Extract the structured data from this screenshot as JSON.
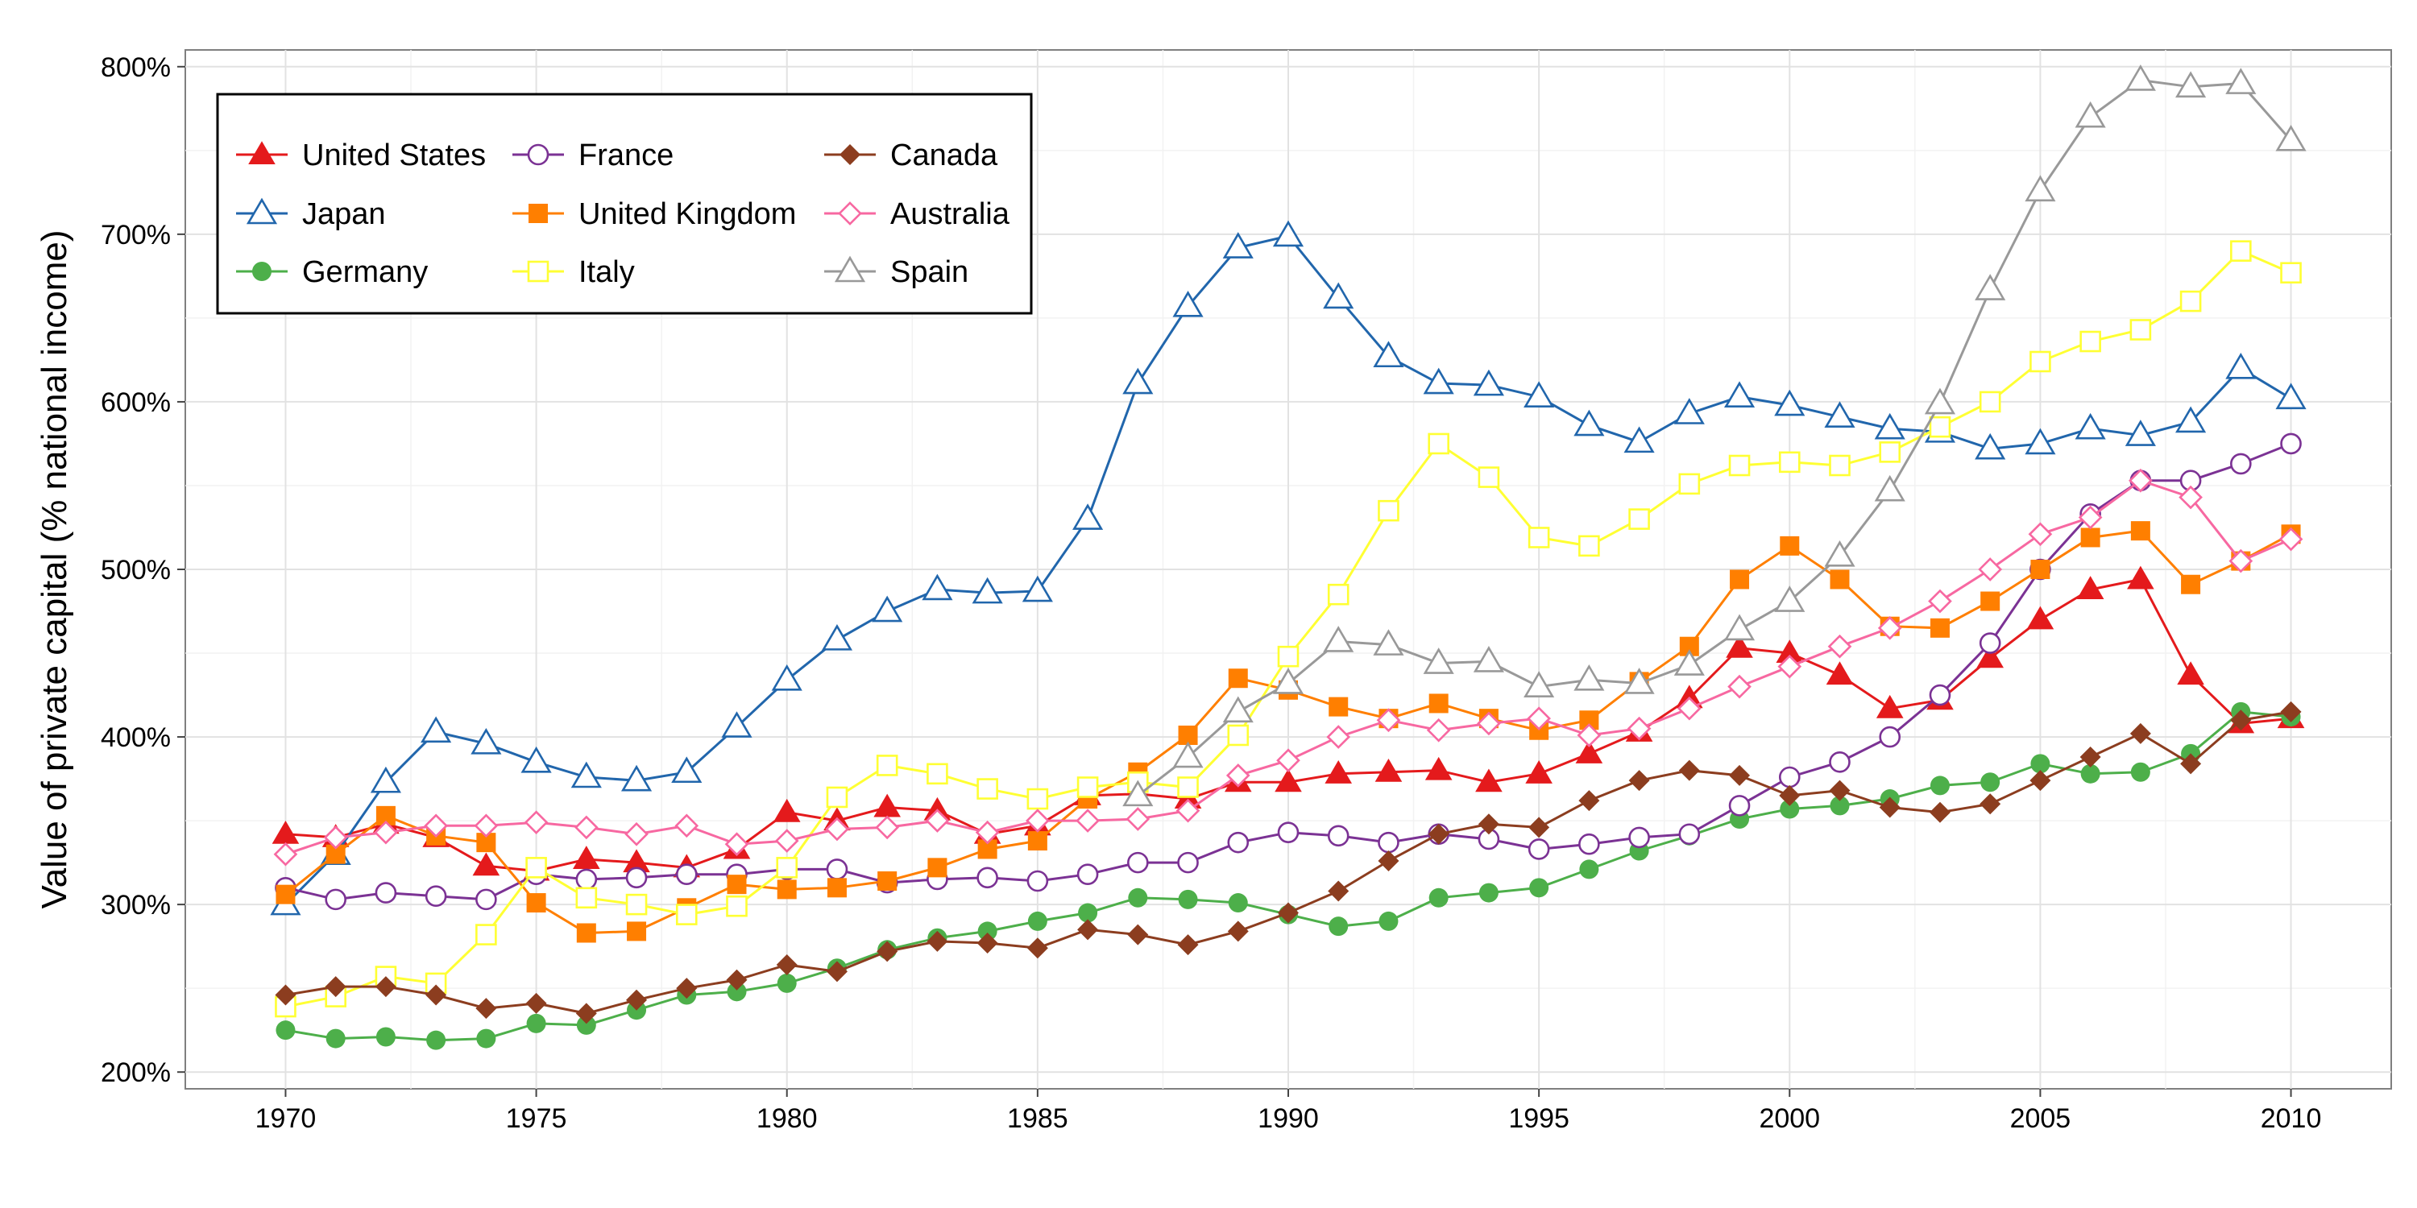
{
  "chart_data": {
    "type": "line",
    "title": "",
    "xlabel": "",
    "ylabel": "Value of private capital (% national income)",
    "xlim": [
      1968.0,
      2012.0
    ],
    "ylim": [
      190,
      810
    ],
    "x_ticks": [
      1970,
      1975,
      1980,
      1985,
      1990,
      1995,
      2000,
      2005,
      2010
    ],
    "y_ticks": [
      200,
      300,
      400,
      500,
      600,
      700,
      800
    ],
    "y_tick_suffix": "%",
    "grid": true,
    "legend_position": "top-left",
    "x": [
      1970,
      1971,
      1972,
      1973,
      1974,
      1975,
      1976,
      1977,
      1978,
      1979,
      1980,
      1981,
      1982,
      1983,
      1984,
      1985,
      1986,
      1987,
      1988,
      1989,
      1990,
      1991,
      1992,
      1993,
      1994,
      1995,
      1996,
      1997,
      1998,
      1999,
      2000,
      2001,
      2002,
      2003,
      2004,
      2005,
      2006,
      2007,
      2008,
      2009,
      2010
    ],
    "series": [
      {
        "name": "United States",
        "color": "#E41A1C",
        "marker": "triangle-filled",
        "values": [
          342,
          340,
          348,
          340,
          323,
          320,
          327,
          325,
          322,
          333,
          355,
          350,
          358,
          356,
          342,
          347,
          365,
          366,
          363,
          373,
          373,
          378,
          379,
          380,
          373,
          378,
          390,
          403,
          423,
          453,
          450,
          437,
          417,
          422,
          447,
          470,
          488,
          494,
          437,
          408,
          411
        ]
      },
      {
        "name": "Japan",
        "color": "#2166AC",
        "marker": "triangle-open",
        "values": [
          300,
          330,
          373,
          403,
          396,
          385,
          376,
          374,
          379,
          406,
          434,
          458,
          475,
          488,
          486,
          487,
          530,
          611,
          657,
          692,
          699,
          662,
          627,
          611,
          610,
          603,
          586,
          576,
          593,
          603,
          598,
          591,
          584,
          582,
          572,
          575,
          584,
          580,
          588,
          620,
          602
        ]
      },
      {
        "name": "Germany",
        "color": "#4DAF4A",
        "marker": "circle-filled",
        "values": [
          225,
          220,
          221,
          219,
          220,
          229,
          228,
          237,
          246,
          248,
          253,
          262,
          273,
          280,
          284,
          290,
          295,
          304,
          303,
          301,
          294,
          287,
          290,
          304,
          307,
          310,
          321,
          332,
          341,
          351,
          357,
          359,
          363,
          371,
          373,
          384,
          378,
          379,
          390,
          415,
          412
        ]
      },
      {
        "name": "France",
        "color": "#7B3294",
        "marker": "circle-open",
        "values": [
          310,
          303,
          307,
          305,
          303,
          318,
          315,
          316,
          318,
          318,
          321,
          321,
          313,
          315,
          316,
          314,
          318,
          325,
          325,
          337,
          343,
          341,
          337,
          342,
          339,
          333,
          336,
          340,
          342,
          359,
          376,
          385,
          400,
          425,
          456,
          500,
          533,
          553,
          553,
          563,
          575
        ]
      },
      {
        "name": "United Kingdom",
        "color": "#FF7F00",
        "marker": "square-filled",
        "values": [
          306,
          330,
          353,
          341,
          337,
          301,
          283,
          284,
          298,
          312,
          309,
          310,
          314,
          322,
          333,
          338,
          363,
          379,
          401,
          435,
          428,
          418,
          411,
          420,
          411,
          404,
          410,
          433,
          454,
          494,
          514,
          494,
          466,
          465,
          481,
          500,
          519,
          523,
          491,
          505,
          521
        ]
      },
      {
        "name": "Italy",
        "color": "#FFFF33",
        "marker": "square-open",
        "values": [
          239,
          245,
          257,
          253,
          282,
          322,
          304,
          300,
          294,
          299,
          322,
          364,
          383,
          378,
          369,
          363,
          370,
          373,
          370,
          401,
          448,
          485,
          535,
          575,
          555,
          519,
          514,
          530,
          551,
          562,
          564,
          562,
          570,
          585,
          600,
          624,
          636,
          643,
          660,
          690,
          677
        ]
      },
      {
        "name": "Canada",
        "color": "#8C3D1F",
        "marker": "diamond-filled",
        "values": [
          246,
          251,
          251,
          246,
          238,
          241,
          235,
          243,
          250,
          255,
          264,
          260,
          272,
          278,
          277,
          274,
          285,
          282,
          276,
          284,
          295,
          308,
          326,
          342,
          348,
          346,
          362,
          374,
          380,
          377,
          365,
          368,
          358,
          355,
          360,
          374,
          388,
          402,
          384,
          410,
          415
        ]
      },
      {
        "name": "Australia",
        "color": "#F768A1",
        "marker": "diamond-open",
        "values": [
          330,
          340,
          343,
          347,
          347,
          349,
          346,
          342,
          347,
          336,
          338,
          345,
          346,
          350,
          343,
          350,
          350,
          351,
          356,
          377,
          386,
          400,
          410,
          404,
          408,
          411,
          401,
          405,
          417,
          430,
          442,
          454,
          465,
          481,
          500,
          521,
          531,
          553,
          543,
          505,
          518
        ]
      },
      {
        "name": "Spain",
        "color": "#999999",
        "marker": "triangle-open",
        "values": [
          null,
          null,
          null,
          null,
          null,
          null,
          null,
          null,
          null,
          null,
          null,
          null,
          null,
          null,
          null,
          null,
          null,
          365,
          388,
          415,
          432,
          457,
          455,
          444,
          445,
          430,
          434,
          432,
          443,
          464,
          481,
          508,
          547,
          599,
          667,
          726,
          770,
          792,
          788,
          790,
          756
        ]
      }
    ]
  }
}
